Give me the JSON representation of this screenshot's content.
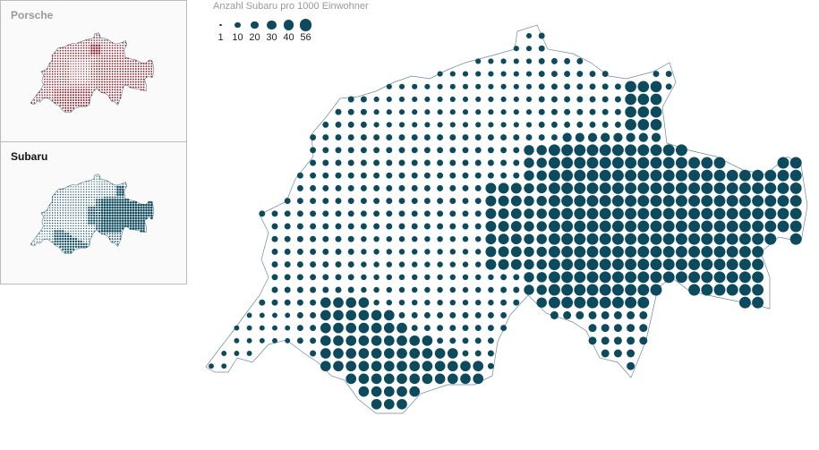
{
  "sidebar": {
    "items": [
      {
        "label": "Porsche",
        "color": "#8b1a24",
        "active": false
      },
      {
        "label": "Subaru",
        "color": "#0d4a5e",
        "active": true
      }
    ]
  },
  "legend": {
    "title": "Anzahl Subaru pro 1000 Einwohner",
    "values": [
      "1",
      "10",
      "20",
      "30",
      "40",
      "56"
    ]
  },
  "map": {
    "dot_color": "#0d4a5e",
    "outline_color": "#6b8a9a",
    "country": "Switzerland"
  }
}
